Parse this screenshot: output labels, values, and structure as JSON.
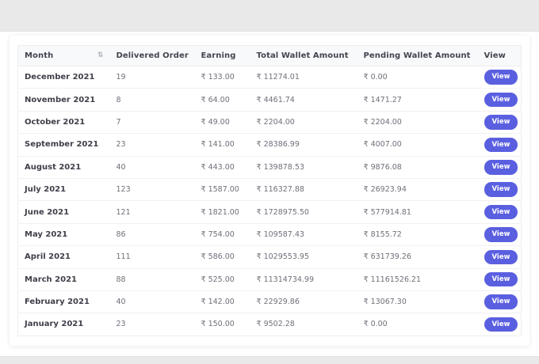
{
  "table": {
    "columns": [
      {
        "label": "Month",
        "sortable": true
      },
      {
        "label": "Delivered Order",
        "sortable": false
      },
      {
        "label": "Earning",
        "sortable": false
      },
      {
        "label": "Total Wallet Amount",
        "sortable": false
      },
      {
        "label": "Pending Wallet Amount",
        "sortable": false
      },
      {
        "label": "View",
        "sortable": false
      }
    ],
    "sort_icon": "⇅",
    "rows": [
      {
        "month": "December 2021",
        "delivered_order": "19",
        "earning": "₹ 133.00",
        "total_wallet": "₹ 11274.01",
        "pending_wallet": "₹ 0.00",
        "action": "View"
      },
      {
        "month": "November 2021",
        "delivered_order": "8",
        "earning": "₹ 64.00",
        "total_wallet": "₹ 4461.74",
        "pending_wallet": "₹ 1471.27",
        "action": "View"
      },
      {
        "month": "October 2021",
        "delivered_order": "7",
        "earning": "₹ 49.00",
        "total_wallet": "₹ 2204.00",
        "pending_wallet": "₹ 2204.00",
        "action": "View"
      },
      {
        "month": "September 2021",
        "delivered_order": "23",
        "earning": "₹ 141.00",
        "total_wallet": "₹ 28386.99",
        "pending_wallet": "₹ 4007.00",
        "action": "View"
      },
      {
        "month": "August 2021",
        "delivered_order": "40",
        "earning": "₹ 443.00",
        "total_wallet": "₹ 139878.53",
        "pending_wallet": "₹ 9876.08",
        "action": "View"
      },
      {
        "month": "July 2021",
        "delivered_order": "123",
        "earning": "₹ 1587.00",
        "total_wallet": "₹ 116327.88",
        "pending_wallet": "₹ 26923.94",
        "action": "View"
      },
      {
        "month": "June 2021",
        "delivered_order": "121",
        "earning": "₹ 1821.00",
        "total_wallet": "₹ 1728975.50",
        "pending_wallet": "₹ 577914.81",
        "action": "View"
      },
      {
        "month": "May 2021",
        "delivered_order": "86",
        "earning": "₹ 754.00",
        "total_wallet": "₹ 109587.43",
        "pending_wallet": "₹ 8155.72",
        "action": "View"
      },
      {
        "month": "April 2021",
        "delivered_order": "111",
        "earning": "₹ 586.00",
        "total_wallet": "₹ 1029553.95",
        "pending_wallet": "₹ 631739.26",
        "action": "View"
      },
      {
        "month": "March 2021",
        "delivered_order": "88",
        "earning": "₹ 525.00",
        "total_wallet": "₹ 11314734.99",
        "pending_wallet": "₹ 11161526.21",
        "action": "View"
      },
      {
        "month": "February 2021",
        "delivered_order": "40",
        "earning": "₹ 142.00",
        "total_wallet": "₹ 22929.86",
        "pending_wallet": "₹ 13067.30",
        "action": "View"
      },
      {
        "month": "January 2021",
        "delivered_order": "23",
        "earning": "₹ 150.00",
        "total_wallet": "₹ 9502.28",
        "pending_wallet": "₹ 0.00",
        "action": "View"
      }
    ]
  },
  "colors": {
    "accent": "#5a5fe0",
    "header_bg": "#f8f9fb",
    "band_gray": "#e9e9e9",
    "row_border": "#f1f1f4"
  }
}
